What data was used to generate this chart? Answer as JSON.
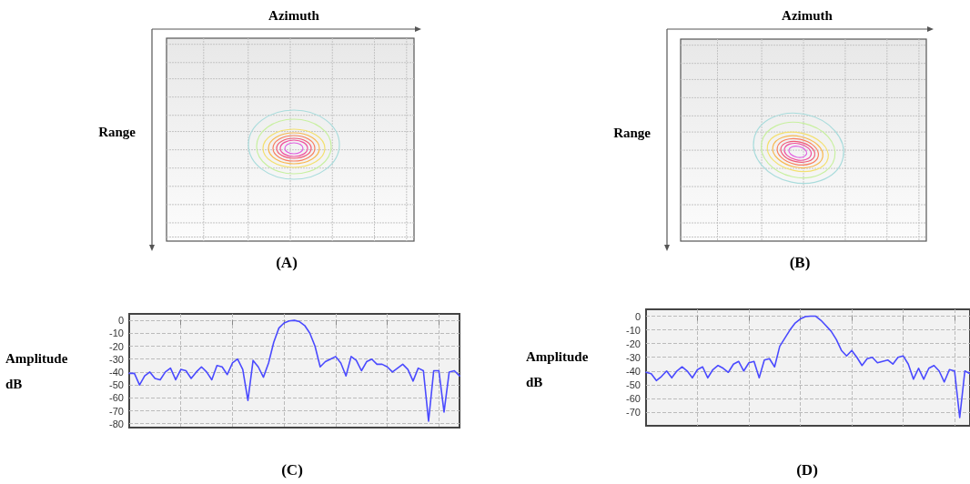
{
  "chart_data": [
    {
      "type": "other",
      "title": "(A)",
      "xlabel": "Azimuth",
      "ylabel": "Range"
    },
    {
      "type": "other",
      "title": "(B)",
      "xlabel": "Azimuth",
      "ylabel": "Range"
    },
    {
      "type": "line",
      "title": "(C)",
      "ylabel": "Amplitude dB",
      "categories": [
        null,
        null,
        null,
        null,
        null,
        null,
        null,
        null,
        null,
        null,
        null,
        null,
        null,
        null,
        null,
        null,
        null,
        null,
        null,
        null,
        null,
        null,
        null,
        null,
        null,
        null,
        null,
        null,
        null,
        null,
        null,
        null,
        null,
        null,
        null,
        null,
        null,
        null,
        null,
        null,
        null,
        null,
        null,
        null,
        null,
        null,
        null,
        null,
        null,
        null,
        null,
        null,
        null,
        null,
        null,
        null,
        null,
        null,
        null,
        null,
        null,
        null,
        null,
        null,
        null
      ],
      "series": [
        {
          "color": "#4a4aff",
          "values": [
            -41,
            -41,
            -50,
            -43,
            -40,
            -45,
            -46,
            -40,
            -37,
            -46,
            -38,
            -39,
            -45,
            -40,
            -36,
            -40,
            -46,
            -35,
            -36,
            -42,
            -33,
            -30,
            -38,
            -62,
            -31,
            -36,
            -44,
            -33,
            -17,
            -6,
            -2,
            -0.5,
            0,
            -1,
            -4,
            -10,
            -20,
            -36,
            -32,
            -30,
            -28,
            -33,
            -43,
            -28,
            -31,
            -39,
            -32,
            -30,
            -34,
            -34,
            -36,
            -40,
            -37,
            -34,
            -38,
            -47,
            -37,
            -39,
            -78,
            -39,
            -39,
            -71,
            -40,
            -39,
            -43
          ]
        }
      ],
      "ylim": [
        -83,
        5
      ],
      "yticks": [
        0,
        -10,
        -20,
        -30,
        -40,
        -50,
        -60,
        -70,
        -80
      ],
      "grid": true,
      "tick_labels": "y"
    },
    {
      "type": "line",
      "title": "(D)",
      "ylabel": "Amplitude dB",
      "categories": [
        null,
        null,
        null,
        null,
        null,
        null,
        null,
        null,
        null,
        null,
        null,
        null,
        null,
        null,
        null,
        null,
        null,
        null,
        null,
        null,
        null,
        null,
        null,
        null,
        null,
        null,
        null,
        null,
        null,
        null,
        null,
        null,
        null,
        null,
        null,
        null,
        null,
        null,
        null,
        null,
        null,
        null,
        null,
        null,
        null,
        null,
        null,
        null,
        null,
        null,
        null,
        null,
        null,
        null,
        null,
        null,
        null,
        null,
        null,
        null,
        null,
        null,
        null,
        null
      ],
      "series": [
        {
          "color": "#4a4aff",
          "values": [
            -41,
            -42,
            -47,
            -44,
            -40,
            -45,
            -40,
            -37,
            -40,
            -45,
            -39,
            -37,
            -45,
            -39,
            -36,
            -38,
            -41,
            -35,
            -33,
            -40,
            -34,
            -33,
            -45,
            -32,
            -31,
            -37,
            -22,
            -16,
            -10,
            -5,
            -2,
            -0.3,
            0,
            0,
            -3,
            -7,
            -11,
            -17,
            -25,
            -29,
            -25,
            -30,
            -36,
            -31,
            -30,
            -34,
            -33,
            -32,
            -35,
            -30,
            -29,
            -35,
            -46,
            -38,
            -46,
            -38,
            -36,
            -40,
            -48,
            -39,
            -40,
            -74,
            -40,
            -42
          ]
        }
      ],
      "ylim": [
        -80,
        5
      ],
      "yticks": [
        0,
        -10,
        -20,
        -30,
        -40,
        -50,
        -60,
        -70
      ],
      "grid": true,
      "tick_labels": "y"
    }
  ]
}
